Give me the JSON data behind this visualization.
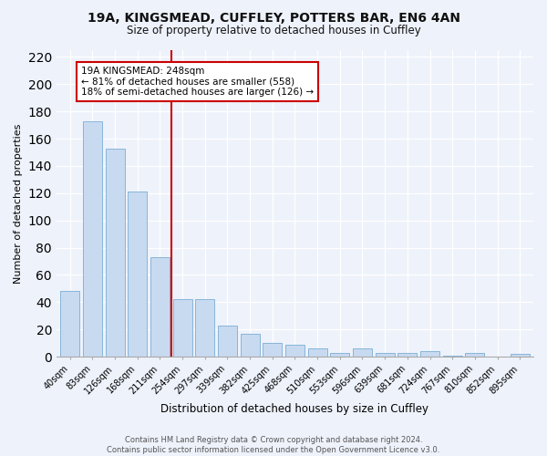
{
  "title1": "19A, KINGSMEAD, CUFFLEY, POTTERS BAR, EN6 4AN",
  "title2": "Size of property relative to detached houses in Cuffley",
  "xlabel": "Distribution of detached houses by size in Cuffley",
  "ylabel": "Number of detached properties",
  "categories": [
    "40sqm",
    "83sqm",
    "126sqm",
    "168sqm",
    "211sqm",
    "254sqm",
    "297sqm",
    "339sqm",
    "382sqm",
    "425sqm",
    "468sqm",
    "510sqm",
    "553sqm",
    "596sqm",
    "639sqm",
    "681sqm",
    "724sqm",
    "767sqm",
    "810sqm",
    "852sqm",
    "895sqm"
  ],
  "values": [
    48,
    173,
    153,
    121,
    73,
    42,
    42,
    23,
    17,
    10,
    9,
    6,
    3,
    6,
    3,
    3,
    4,
    1,
    3,
    0,
    2
  ],
  "bar_color": "#c8daf0",
  "bar_edge_color": "#7aadd4",
  "vline_index": 5,
  "vline_color": "#cc0000",
  "annotation_title": "19A KINGSMEAD: 248sqm",
  "annotation_line1": "← 81% of detached houses are smaller (558)",
  "annotation_line2": "18% of semi-detached houses are larger (126) →",
  "annotation_box_facecolor": "#ffffff",
  "annotation_box_edgecolor": "#cc0000",
  "ylim": [
    0,
    225
  ],
  "yticks": [
    0,
    20,
    40,
    60,
    80,
    100,
    120,
    140,
    160,
    180,
    200,
    220
  ],
  "footer1": "Contains HM Land Registry data © Crown copyright and database right 2024.",
  "footer2": "Contains public sector information licensed under the Open Government Licence v3.0.",
  "bg_color": "#eef2fb"
}
